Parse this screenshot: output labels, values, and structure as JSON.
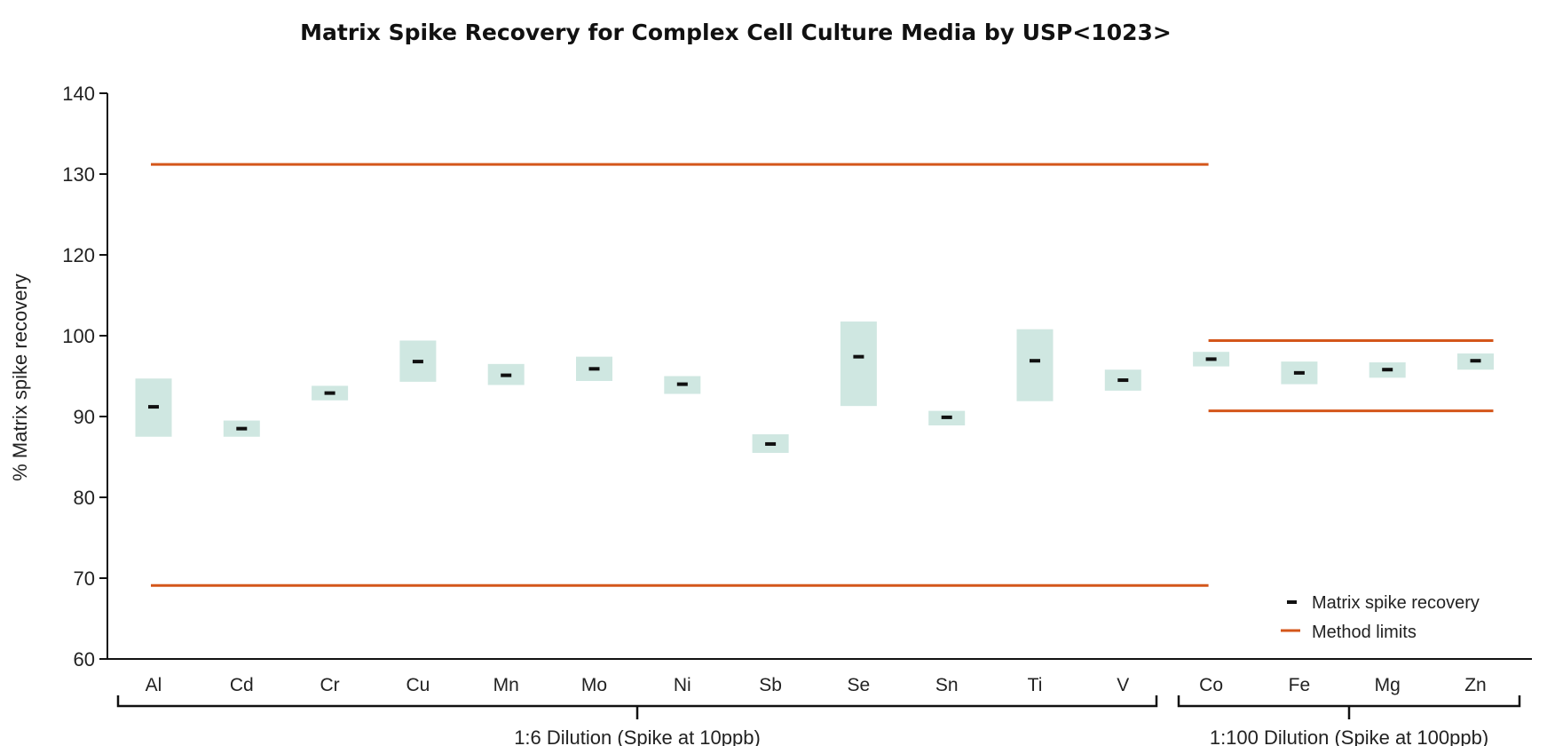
{
  "chart_data": {
    "type": "range-box with point markers",
    "title": "Matrix Spike Recovery for Complex Cell Culture Media by USP<1023>",
    "ylabel": "% Matrix spike recovery",
    "xlabel": "",
    "y_tick_labels": [
      140,
      130,
      120,
      100,
      90,
      80,
      70,
      60
    ],
    "ylim": [
      60,
      140
    ],
    "grid": false,
    "legend_placement": "bottom-right",
    "legend": [
      {
        "label": "Matrix spike recovery",
        "symbol": "black dash marker"
      },
      {
        "label": "Method limits",
        "symbol": "orange line"
      }
    ],
    "colors": {
      "range_box": "#cfe7e1",
      "marker": "#111111",
      "method_limits": "#d4561a",
      "axis": "#111111"
    },
    "groups": [
      {
        "label": "1:6 Dilution (Spike at 10ppb)",
        "method_limits": {
          "lower": 69.1,
          "upper": 131.2
        },
        "elements": [
          {
            "name": "Al",
            "recovery": 91.2,
            "range": [
              87.5,
              94.7
            ]
          },
          {
            "name": "Cd",
            "recovery": 88.5,
            "range": [
              87.5,
              89.5
            ]
          },
          {
            "name": "Cr",
            "recovery": 92.9,
            "range": [
              92.0,
              93.8
            ]
          },
          {
            "name": "Cu",
            "recovery": 96.8,
            "range": [
              94.3,
              99.4
            ]
          },
          {
            "name": "Mn",
            "recovery": 95.1,
            "range": [
              93.9,
              96.5
            ]
          },
          {
            "name": "Mo",
            "recovery": 95.9,
            "range": [
              94.4,
              97.4
            ]
          },
          {
            "name": "Ni",
            "recovery": 94.0,
            "range": [
              92.8,
              95.0
            ]
          },
          {
            "name": "Sb",
            "recovery": 86.6,
            "range": [
              85.5,
              87.8
            ]
          },
          {
            "name": "Se",
            "recovery": 97.4,
            "range": [
              91.3,
              103.5
            ]
          },
          {
            "name": "Sn",
            "recovery": 89.9,
            "range": [
              88.9,
              90.7
            ]
          },
          {
            "name": "Ti",
            "recovery": 96.9,
            "range": [
              91.9,
              101.6
            ]
          },
          {
            "name": "V",
            "recovery": 94.5,
            "range": [
              93.2,
              95.8
            ]
          }
        ]
      },
      {
        "label": "1:100 Dilution (Spike at 100ppb)",
        "method_limits": {
          "lower": 90.7,
          "upper": 99.4
        },
        "elements": [
          {
            "name": "Co",
            "recovery": 97.1,
            "range": [
              96.2,
              98.0
            ]
          },
          {
            "name": "Fe",
            "recovery": 95.4,
            "range": [
              94.0,
              96.8
            ]
          },
          {
            "name": "Mg",
            "recovery": 95.8,
            "range": [
              94.8,
              96.7
            ]
          },
          {
            "name": "Zn",
            "recovery": 96.9,
            "range": [
              95.8,
              97.8
            ]
          }
        ]
      }
    ]
  }
}
